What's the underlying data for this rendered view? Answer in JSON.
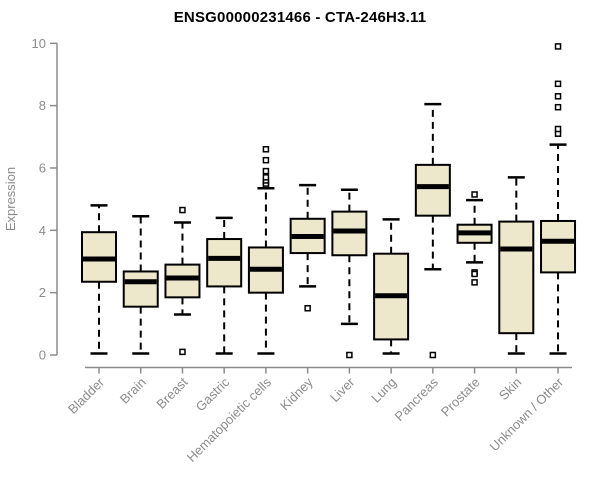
{
  "chart_data": {
    "type": "boxplot",
    "title": "ENSG00000231466 - CTA-246H3.11",
    "ylabel": "Expression",
    "xlabel": "",
    "ylim": [
      0,
      10
    ],
    "yticks": [
      0,
      2,
      4,
      6,
      8,
      10
    ],
    "grid": false,
    "legend": false,
    "categories": [
      "Bladder",
      "Brain",
      "Breast",
      "Gastric",
      "Hematopoietic cells",
      "Kidney",
      "Liver",
      "Lung",
      "Pancreas",
      "Prostate",
      "Skin",
      "Unknown / Other"
    ],
    "series": [
      {
        "name": "Bladder",
        "whisker_low": 0.05,
        "q1": 2.35,
        "median": 3.08,
        "q3": 3.94,
        "whisker_high": 4.8,
        "outliers": []
      },
      {
        "name": "Brain",
        "whisker_low": 0.05,
        "q1": 1.55,
        "median": 2.35,
        "q3": 2.68,
        "whisker_high": 4.45,
        "outliers": []
      },
      {
        "name": "Breast",
        "whisker_low": 1.3,
        "q1": 1.85,
        "median": 2.47,
        "q3": 2.9,
        "whisker_high": 4.25,
        "outliers": [
          4.65,
          0.1
        ]
      },
      {
        "name": "Gastric",
        "whisker_low": 0.05,
        "q1": 2.2,
        "median": 3.1,
        "q3": 3.72,
        "whisker_high": 4.4,
        "outliers": []
      },
      {
        "name": "Hematopoietic cells",
        "whisker_low": 0.05,
        "q1": 2.0,
        "median": 2.75,
        "q3": 3.45,
        "whisker_high": 5.35,
        "outliers": [
          5.45,
          5.5,
          5.6,
          5.7,
          5.9,
          6.25,
          6.6
        ]
      },
      {
        "name": "Kidney",
        "whisker_low": 2.2,
        "q1": 3.27,
        "median": 3.8,
        "q3": 4.37,
        "whisker_high": 5.45,
        "outliers": [
          1.5
        ]
      },
      {
        "name": "Liver",
        "whisker_low": 1.0,
        "q1": 3.2,
        "median": 3.98,
        "q3": 4.6,
        "whisker_high": 5.3,
        "outliers": [
          0.0
        ]
      },
      {
        "name": "Lung",
        "whisker_low": 0.05,
        "q1": 0.5,
        "median": 1.9,
        "q3": 3.25,
        "whisker_high": 4.35,
        "outliers": []
      },
      {
        "name": "Pancreas",
        "whisker_low": 2.75,
        "q1": 4.47,
        "median": 5.4,
        "q3": 6.1,
        "whisker_high": 8.05,
        "outliers": [
          0.0
        ]
      },
      {
        "name": "Prostate",
        "whisker_low": 2.97,
        "q1": 3.6,
        "median": 3.92,
        "q3": 4.18,
        "whisker_high": 4.97,
        "outliers": [
          5.15,
          2.65,
          2.6,
          2.33
        ]
      },
      {
        "name": "Skin",
        "whisker_low": 0.05,
        "q1": 0.7,
        "median": 3.4,
        "q3": 4.28,
        "whisker_high": 5.7,
        "outliers": []
      },
      {
        "name": "Unknown / Other",
        "whisker_low": 0.05,
        "q1": 2.65,
        "median": 3.65,
        "q3": 4.3,
        "whisker_high": 6.75,
        "outliers": [
          7.1,
          7.25,
          7.95,
          8.3,
          8.7,
          9.9
        ]
      }
    ]
  },
  "colors": {
    "background": "#FFFFFF",
    "box_fill": "#EDE8CB",
    "box_border": "#000000",
    "median": "#000000",
    "whisker": "#000000",
    "outlier_fill": "#FFFFFF",
    "outlier_border": "#000000",
    "axis": "#8C8C8C",
    "tick_label": "#8C8C8C",
    "title": "#000000"
  }
}
